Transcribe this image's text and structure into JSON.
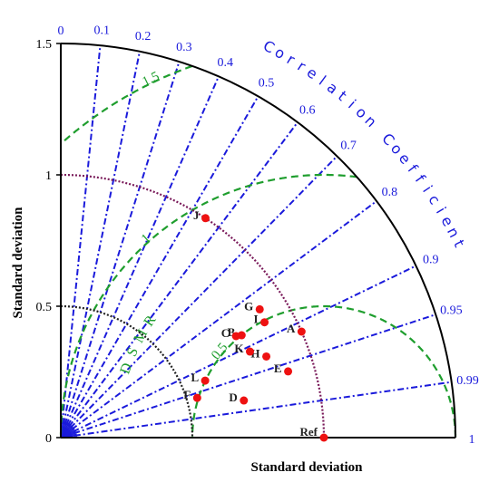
{
  "chart_data": {
    "type": "scatter",
    "subtype": "taylor-diagram",
    "title": "",
    "xlabel": "Standard deviation",
    "ylabel": "Standard deviation",
    "arc_label": "Correlation Coefficient",
    "rms_label": "RMSD",
    "std_range": [
      0,
      1.5
    ],
    "std_ticks": [
      "0",
      "0.5",
      "1",
      "1.5"
    ],
    "correlation_ticks": [
      {
        "r": 0,
        "label": "0"
      },
      {
        "r": 0.1,
        "label": "0.1"
      },
      {
        "r": 0.2,
        "label": "0.2"
      },
      {
        "r": 0.3,
        "label": "0.3"
      },
      {
        "r": 0.4,
        "label": "0.4"
      },
      {
        "r": 0.5,
        "label": "0.5"
      },
      {
        "r": 0.6,
        "label": "0.6"
      },
      {
        "r": 0.7,
        "label": "0.7"
      },
      {
        "r": 0.8,
        "label": "0.8"
      },
      {
        "r": 0.9,
        "label": "0.9"
      },
      {
        "r": 0.95,
        "label": "0.95"
      },
      {
        "r": 0.99,
        "label": "0.99"
      },
      {
        "r": 1,
        "label": "1"
      }
    ],
    "rms_contours": [
      {
        "value": 0.5,
        "label": "0.5"
      },
      {
        "value": 1.0,
        "label": "1"
      },
      {
        "value": 1.5,
        "label": "1.5"
      }
    ],
    "std_reference_arcs": [
      0.5,
      1.0
    ],
    "reference": {
      "label": "Ref",
      "std": 1.0,
      "correlation": 1.0
    },
    "points": [
      {
        "label": "A",
        "std": 1.0,
        "correlation": 0.915
      },
      {
        "label": "B",
        "std": 0.79,
        "correlation": 0.87
      },
      {
        "label": "C",
        "std": 0.77,
        "correlation": 0.865
      },
      {
        "label": "D",
        "std": 0.71,
        "correlation": 0.98
      },
      {
        "label": "E",
        "std": 0.9,
        "correlation": 0.96
      },
      {
        "label": "F",
        "std": 0.54,
        "correlation": 0.96
      },
      {
        "label": "G",
        "std": 0.9,
        "correlation": 0.84
      },
      {
        "label": "H",
        "std": 0.84,
        "correlation": 0.93
      },
      {
        "label": "I",
        "std": 0.89,
        "correlation": 0.87
      },
      {
        "label": "J",
        "std": 1.0,
        "correlation": 0.55
      },
      {
        "label": "K",
        "std": 0.79,
        "correlation": 0.91
      },
      {
        "label": "L",
        "std": 0.59,
        "correlation": 0.93
      }
    ],
    "colors": {
      "axis": "#000000",
      "correlation_lines": "#1a1adb",
      "rms_contours": "#1f9e2e",
      "std_arc_outer": "#7a1a5a",
      "std_arc_inner": "#222222",
      "points": "#ee1111",
      "labels": "#1a1adb"
    },
    "grid": true,
    "legend": "none"
  }
}
